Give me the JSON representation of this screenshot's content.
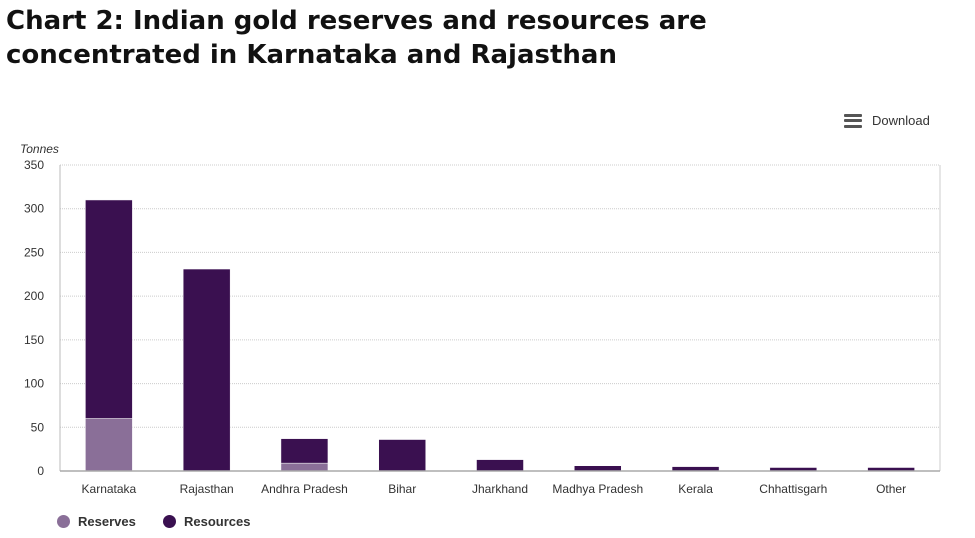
{
  "title": "Chart 2: Indian gold reserves and resources are concentrated in Karnataka and Rajasthan",
  "download_label": "Download",
  "chart_data": {
    "type": "bar",
    "stacked": true,
    "ylabel": "Tonnes",
    "ylim": [
      0,
      350
    ],
    "yticks": [
      0,
      50,
      100,
      150,
      200,
      250,
      300,
      350
    ],
    "grid": true,
    "legend_position": "bottom-left",
    "categories": [
      "Karnataka",
      "Rajasthan",
      "Andhra Pradesh",
      "Bihar",
      "Jharkhand",
      "Madhya Pradesh",
      "Kerala",
      "Chhattisgarh",
      "Other"
    ],
    "series": [
      {
        "name": "Reserves",
        "color": "#8a6f98",
        "values": [
          60,
          0,
          9,
          0,
          0,
          0,
          0,
          0,
          0
        ]
      },
      {
        "name": "Resources",
        "color": "#3a1050",
        "values": [
          250,
          231,
          28,
          36,
          13,
          6,
          5,
          4,
          4
        ]
      }
    ]
  }
}
